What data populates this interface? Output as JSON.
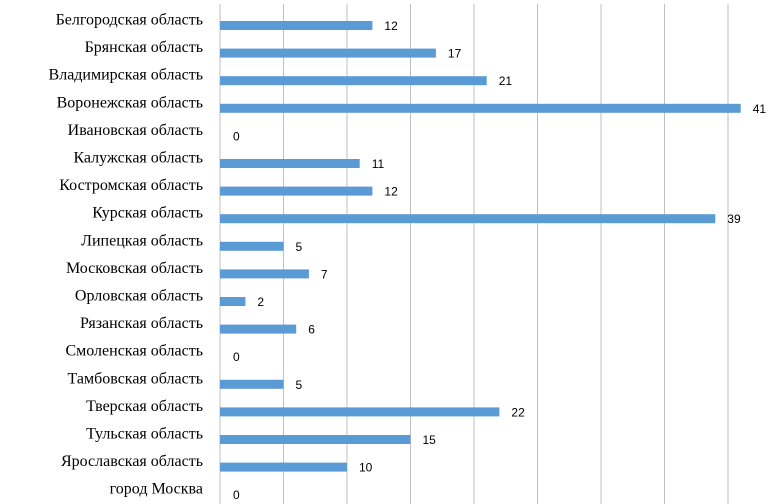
{
  "chart_data": {
    "type": "bar",
    "orientation": "horizontal",
    "categories": [
      "Белгородская область",
      "Брянская область",
      "Владимирская область",
      "Воронежская область",
      "Ивановская область",
      "Калужская область",
      "Костромская область",
      "Курская область",
      "Липецкая область",
      "Московская область",
      "Орловская область",
      "Рязанская область",
      "Смоленская область",
      "Тамбовская область",
      "Тверская область",
      "Тульская область",
      "Ярославская область",
      "город Москва"
    ],
    "values": [
      12,
      17,
      21,
      41,
      0,
      11,
      12,
      39,
      5,
      7,
      2,
      6,
      0,
      5,
      22,
      15,
      10,
      0
    ],
    "title": "",
    "xlabel": "",
    "ylabel": "",
    "xlim": [
      0,
      45
    ],
    "grid": true,
    "data_labels": true,
    "colors": {
      "bar": "#5b9bd5",
      "grid": "#bfbfbf",
      "text": "#000000"
    }
  }
}
